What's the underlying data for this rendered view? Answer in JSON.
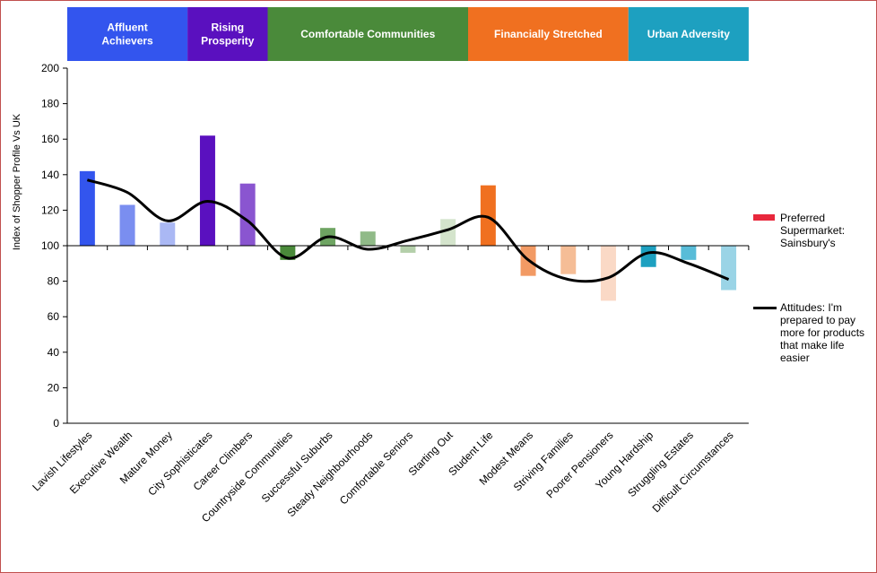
{
  "chart_data": {
    "type": "bar",
    "title": "",
    "xlabel": "",
    "ylabel": "Index of Shopper Profile Vs UK",
    "ylim": [
      0,
      200
    ],
    "yticks": [
      0,
      20,
      40,
      60,
      80,
      100,
      120,
      140,
      160,
      180,
      200
    ],
    "baseline": 100,
    "grid": false,
    "legend_position": "right",
    "categories": [
      "Lavish Lifestyles",
      "Executive Wealth",
      "Mature Money",
      "City Sophisticates",
      "Career Climbers",
      "Countryside Communities",
      "Successful Suburbs",
      "Steady Neighbourhoods",
      "Comfortable Seniors",
      "Starting Out",
      "Student Life",
      "Modest Means",
      "Striving Families",
      "Poorer Pensioners",
      "Young Hardship",
      "Struggling Estates",
      "Difficult Circumstances"
    ],
    "series": [
      {
        "name": "Preferred Supermarket: Sainsbury's",
        "kind": "bar",
        "legend_color": "#e8283c",
        "values": [
          142,
          123,
          113,
          162,
          135,
          92,
          110,
          108,
          96,
          115,
          134,
          83,
          84,
          69,
          88,
          92,
          75
        ],
        "colors": [
          "#3355ee",
          "#7a8ef0",
          "#aab8f4",
          "#5a10bf",
          "#8a55d0",
          "#4a8a3a",
          "#6ea462",
          "#90ba88",
          "#b4cfaa",
          "#d4e4cc",
          "#f07020",
          "#f29a64",
          "#f5bd96",
          "#fad9c6",
          "#1da0c0",
          "#58bcd8",
          "#9ad4e6"
        ]
      },
      {
        "name": "Attitudes: I'm prepared to pay more for products that make life easier",
        "kind": "line",
        "color": "#000000",
        "values": [
          137,
          130,
          114,
          125,
          114,
          93,
          105,
          98,
          103,
          109,
          116,
          92,
          81,
          82,
          96,
          90,
          81
        ]
      }
    ],
    "groups": [
      {
        "label": "Affluent Achievers",
        "start": 0,
        "end": 2,
        "color": "#3355ee"
      },
      {
        "label": "Rising Prosperity",
        "start": 3,
        "end": 4,
        "color": "#5a10bf"
      },
      {
        "label": "Comfortable Communities",
        "start": 5,
        "end": 9,
        "color": "#4a8a3a"
      },
      {
        "label": "Financially Stretched",
        "start": 10,
        "end": 13,
        "color": "#f07020"
      },
      {
        "label": "Urban Adversity",
        "start": 14,
        "end": 16,
        "color": "#1da0c0"
      }
    ]
  }
}
